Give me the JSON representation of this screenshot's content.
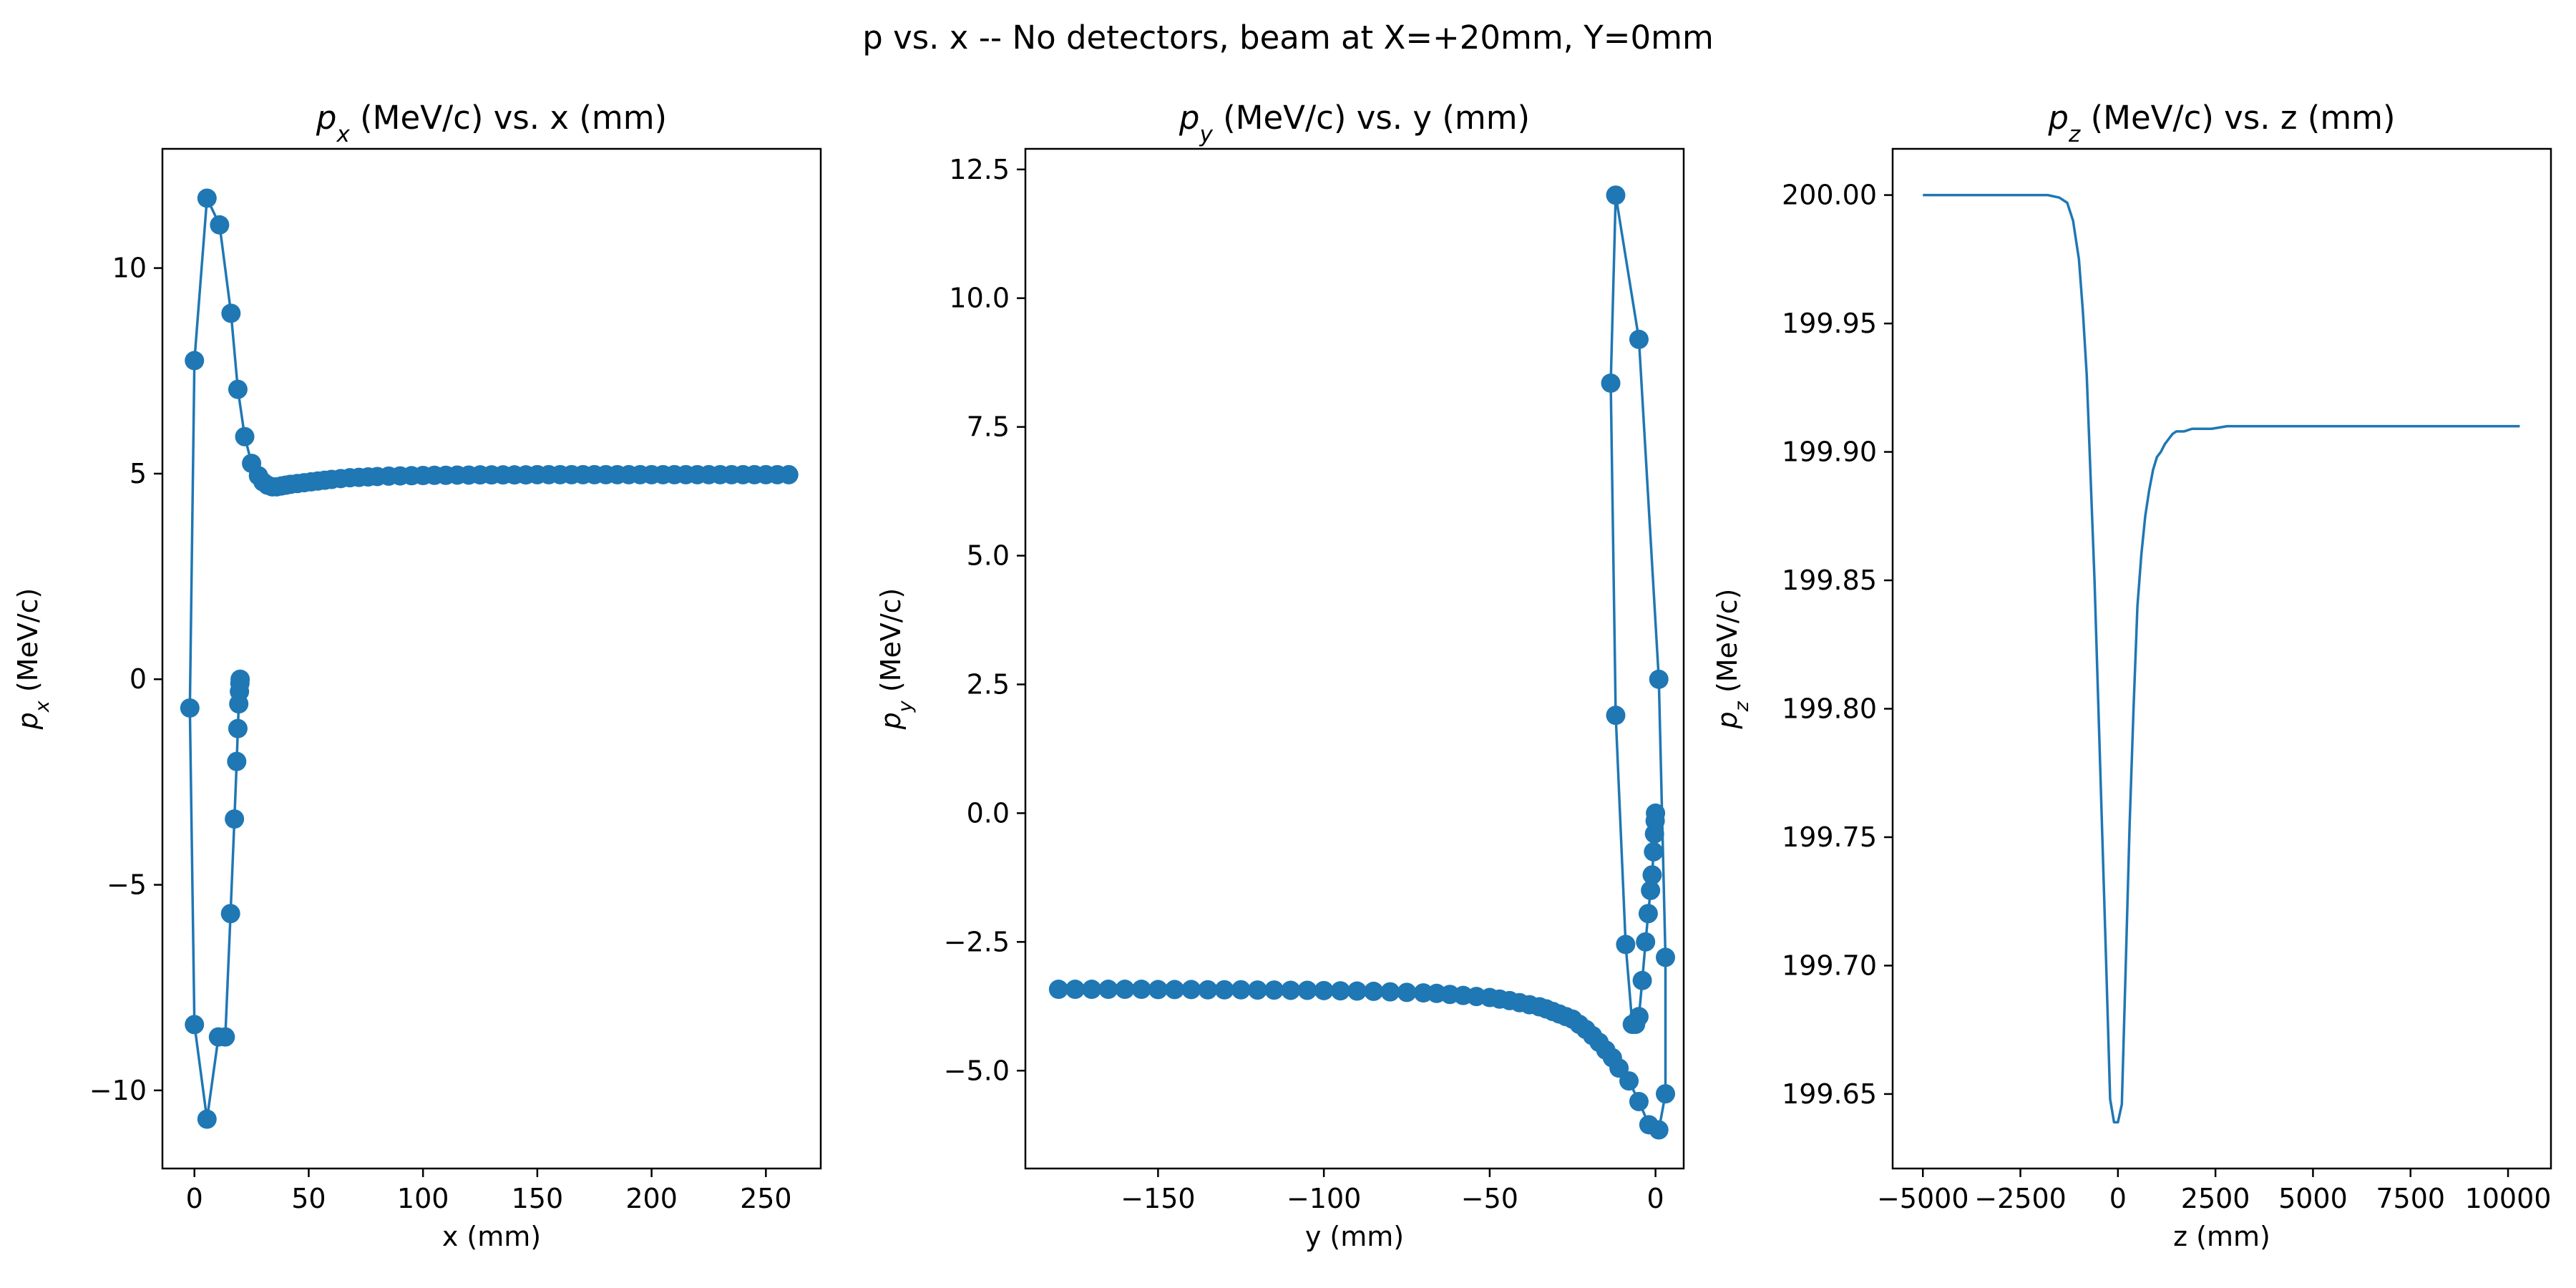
{
  "figure": {
    "suptitle": "p vs. x -- No detectors, beam at X=+20mm, Y=0mm"
  },
  "colors": {
    "series": "#1f77b4",
    "axes": "#000000",
    "background": "#ffffff"
  },
  "chart_data": [
    {
      "type": "line",
      "marker": "circle",
      "title": "p_x (MeV/c) vs. x (mm)",
      "title_sym": "p",
      "title_sub": "x",
      "title_rest": " (MeV/c) vs. x (mm)",
      "xlabel": "x (mm)",
      "ylabel": "p_x (MeV/c)",
      "ylabel_sym": "p",
      "ylabel_sub": "x",
      "ylabel_rest": " (MeV/c)",
      "xlim": [
        -14,
        274
      ],
      "ylim": [
        -11.9,
        12.9
      ],
      "xticks": [
        0,
        50,
        100,
        150,
        200,
        250
      ],
      "xtick_labels": [
        "0",
        "50",
        "100",
        "150",
        "200",
        "250"
      ],
      "yticks": [
        -10,
        -5,
        0,
        5,
        10
      ],
      "ytick_labels": [
        "−10",
        "−5",
        "0",
        "5",
        "10"
      ],
      "grid": false,
      "series": [
        {
          "x": [
            20,
            19.9,
            19.7,
            19.4,
            19.0,
            18.5,
            17.5,
            15.8,
            13.5,
            10.5,
            5.5,
            0,
            -2,
            0,
            5.5,
            11,
            16,
            19,
            22,
            25,
            28,
            30,
            32,
            34,
            36,
            38,
            40,
            42,
            45,
            48,
            51,
            54,
            57,
            60,
            64,
            68,
            72,
            76,
            80,
            85,
            90,
            95,
            100,
            105,
            110,
            115,
            120,
            125,
            130,
            135,
            140,
            145,
            150,
            155,
            160,
            165,
            170,
            175,
            180,
            185,
            190,
            195,
            200,
            205,
            210,
            215,
            220,
            225,
            230,
            235,
            240,
            245,
            250,
            255,
            260
          ],
          "y": [
            0.0,
            -0.1,
            -0.3,
            -0.6,
            -1.2,
            -2.0,
            -3.4,
            -5.7,
            -8.7,
            -8.7,
            -10.7,
            -8.4,
            -0.7,
            7.75,
            11.7,
            11.05,
            8.9,
            7.05,
            5.9,
            5.25,
            4.95,
            4.8,
            4.72,
            4.68,
            4.68,
            4.7,
            4.72,
            4.74,
            4.76,
            4.78,
            4.8,
            4.82,
            4.84,
            4.86,
            4.88,
            4.9,
            4.91,
            4.92,
            4.93,
            4.94,
            4.945,
            4.95,
            4.955,
            4.96,
            4.96,
            4.965,
            4.965,
            4.97,
            4.97,
            4.97,
            4.97,
            4.97,
            4.975,
            4.975,
            4.975,
            4.975,
            4.975,
            4.975,
            4.975,
            4.975,
            4.975,
            4.975,
            4.975,
            4.975,
            4.975,
            4.975,
            4.975,
            4.975,
            4.975,
            4.975,
            4.975,
            4.975,
            4.975,
            4.975,
            4.975
          ]
        }
      ]
    },
    {
      "type": "line",
      "marker": "circle",
      "title": "p_y (MeV/c) vs. y (mm)",
      "title_sym": "p",
      "title_sub": "y",
      "title_rest": " (MeV/c) vs. y (mm)",
      "xlabel": "y (mm)",
      "ylabel": "p_y (MeV/c)",
      "ylabel_sym": "p",
      "ylabel_sub": "y",
      "ylabel_rest": " (MeV/c)",
      "xlim": [
        -190,
        8.5
      ],
      "ylim": [
        -6.9,
        12.9
      ],
      "xticks": [
        -150,
        -100,
        -50,
        0
      ],
      "xtick_labels": [
        "−150",
        "−100",
        "−50",
        "0"
      ],
      "yticks": [
        -5.0,
        -2.5,
        0.0,
        2.5,
        5.0,
        7.5,
        10.0,
        12.5
      ],
      "ytick_labels": [
        "−5.0",
        "−2.5",
        "0.0",
        "2.5",
        "5.0",
        "7.5",
        "10.0",
        "12.5"
      ],
      "grid": false,
      "series": [
        {
          "x": [
            0,
            -0.1,
            -0.3,
            -0.6,
            -1.0,
            -1.5,
            -2.2,
            -3.0,
            -4.0,
            -5.0,
            -6.0,
            -7.0,
            -9.0,
            -12.0,
            -13.5,
            -12.0,
            -5.0,
            1.0,
            3.0,
            3.0,
            1.0,
            -2.0,
            -5.0,
            -8.0,
            -11.0,
            -13.0,
            -15.0,
            -17.0,
            -19.0,
            -21.0,
            -23.0,
            -25.0,
            -27.0,
            -29.0,
            -31.0,
            -33.0,
            -35.0,
            -38.0,
            -41.0,
            -44.0,
            -47.0,
            -50.0,
            -54.0,
            -58.0,
            -62.0,
            -66.0,
            -70.0,
            -75.0,
            -80.0,
            -85.0,
            -90.0,
            -95.0,
            -100.0,
            -105.0,
            -110.0,
            -115.0,
            -120.0,
            -125.0,
            -130.0,
            -135.0,
            -140.0,
            -145.0,
            -150.0,
            -155.0,
            -160.0,
            -165.0,
            -170.0,
            -175.0,
            -180.0
          ],
          "y": [
            0.0,
            -0.15,
            -0.4,
            -0.75,
            -1.2,
            -1.5,
            -1.95,
            -2.5,
            -3.25,
            -3.95,
            -4.1,
            -4.1,
            -2.55,
            1.9,
            8.35,
            12.0,
            9.2,
            2.6,
            -2.8,
            -5.45,
            -6.15,
            -6.05,
            -5.6,
            -5.2,
            -4.95,
            -4.75,
            -4.6,
            -4.45,
            -4.32,
            -4.2,
            -4.1,
            -4.0,
            -3.95,
            -3.9,
            -3.85,
            -3.8,
            -3.76,
            -3.72,
            -3.68,
            -3.64,
            -3.61,
            -3.58,
            -3.56,
            -3.54,
            -3.52,
            -3.5,
            -3.49,
            -3.48,
            -3.47,
            -3.46,
            -3.455,
            -3.45,
            -3.445,
            -3.44,
            -3.44,
            -3.435,
            -3.435,
            -3.43,
            -3.43,
            -3.43,
            -3.425,
            -3.425,
            -3.425,
            -3.42,
            -3.42,
            -3.42,
            -3.42,
            -3.42,
            -3.42
          ]
        }
      ]
    },
    {
      "type": "line",
      "marker": "none",
      "title": "p_z (MeV/c) vs. z (mm)",
      "title_sym": "p",
      "title_sub": "z",
      "title_rest": " (MeV/c) vs. z (mm)",
      "xlabel": "z (mm)",
      "ylabel": "p_z (MeV/c)",
      "ylabel_sym": "p",
      "ylabel_sub": "z",
      "ylabel_rest": " (MeV/c)",
      "xlim": [
        -5775,
        11100
      ],
      "ylim": [
        199.621,
        200.018
      ],
      "xticks": [
        -5000,
        -2500,
        0,
        2500,
        5000,
        7500,
        10000
      ],
      "xtick_labels": [
        "−5000",
        "−2500",
        "0",
        "2500",
        "5000",
        "7500",
        "10000"
      ],
      "yticks": [
        199.65,
        199.7,
        199.75,
        199.8,
        199.85,
        199.9,
        199.95,
        200.0
      ],
      "ytick_labels": [
        "199.65",
        "199.70",
        "199.75",
        "199.80",
        "199.85",
        "199.90",
        "199.95",
        "200.00"
      ],
      "grid": false,
      "series": [
        {
          "x": [
            -5000,
            -3000,
            -1800,
            -1500,
            -1300,
            -1150,
            -1000,
            -900,
            -800,
            -700,
            -600,
            -500,
            -400,
            -300,
            -200,
            -100,
            0,
            100,
            200,
            300,
            400,
            500,
            600,
            700,
            800,
            900,
            1000,
            1100,
            1200,
            1300,
            1400,
            1500,
            1700,
            1900,
            2100,
            2400,
            2800,
            5000,
            10300
          ],
          "y": [
            200.0,
            200.0,
            200.0,
            199.999,
            199.997,
            199.99,
            199.975,
            199.955,
            199.93,
            199.89,
            199.85,
            199.8,
            199.75,
            199.7,
            199.648,
            199.639,
            199.639,
            199.646,
            199.7,
            199.755,
            199.8,
            199.84,
            199.86,
            199.875,
            199.885,
            199.893,
            199.898,
            199.9,
            199.903,
            199.905,
            199.907,
            199.908,
            199.908,
            199.909,
            199.909,
            199.909,
            199.91,
            199.91,
            199.91
          ]
        }
      ]
    }
  ]
}
